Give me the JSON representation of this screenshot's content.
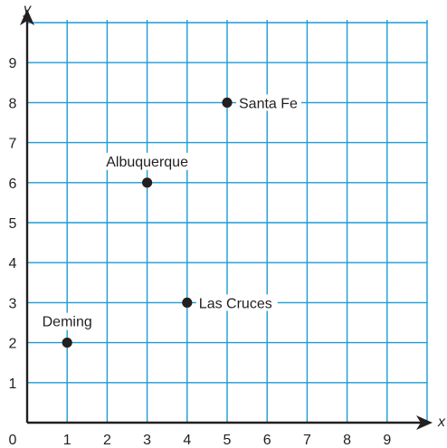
{
  "chart_data": {
    "type": "scatter",
    "title": "",
    "xlabel": "x",
    "ylabel": "y",
    "xlim": [
      0,
      10
    ],
    "ylim": [
      0,
      10
    ],
    "x_ticks": [
      "0",
      "1",
      "2",
      "3",
      "4",
      "5",
      "6",
      "7",
      "8",
      "9"
    ],
    "y_ticks": [
      "1",
      "2",
      "3",
      "4",
      "5",
      "6",
      "7",
      "8",
      "9"
    ],
    "grid": true,
    "grid_color": "#1a9bd7",
    "axis_color": "#231f20",
    "point_color": "#231f20",
    "points": [
      {
        "label": "Deming",
        "x": 1,
        "y": 2
      },
      {
        "label": "Albuquerque",
        "x": 3,
        "y": 6
      },
      {
        "label": "Las Cruces",
        "x": 4,
        "y": 3
      },
      {
        "label": "Santa Fe",
        "x": 5,
        "y": 8
      }
    ]
  }
}
